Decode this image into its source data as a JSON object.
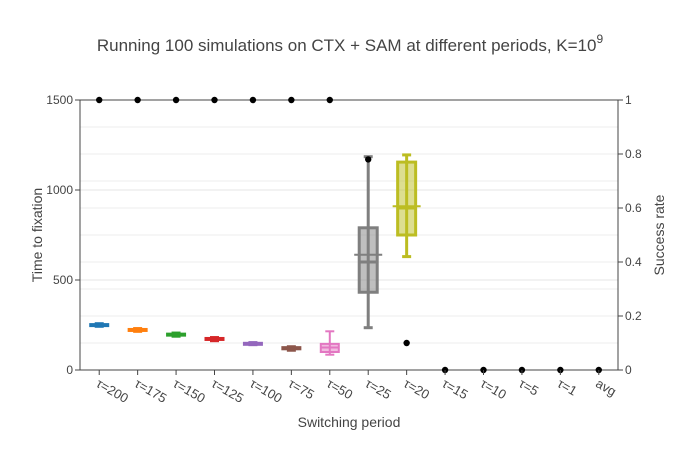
{
  "chart_data": {
    "type": "box",
    "title": "Running 100 simulations on CTX + SAM at different periods, K=10",
    "title_superscript": "9",
    "xlabel": "Switching period",
    "ylabel_left": "Time to fixation",
    "ylabel_right": "Success rate",
    "y_left_range": [
      0,
      1500
    ],
    "y_left_ticks": [
      0,
      500,
      1000,
      1500
    ],
    "y_left_tick_labels": [
      "0",
      "500",
      "1000",
      "1500"
    ],
    "y_right_range": [
      0,
      1
    ],
    "y_right_ticks": [
      0,
      0.2,
      0.4,
      0.6,
      0.8,
      1
    ],
    "y_right_tick_labels": [
      "0",
      "0.2",
      "0.4",
      "0.6",
      "0.8",
      "1"
    ],
    "grid": true,
    "categories": [
      "τ=200",
      "τ=175",
      "τ=150",
      "τ=125",
      "τ=100",
      "τ=75",
      "τ=50",
      "τ=25",
      "τ=20",
      "τ=15",
      "τ=10",
      "τ=5",
      "τ=1",
      "avg"
    ],
    "boxes": [
      {
        "category": "τ=200",
        "color": "#1f77b4",
        "min": 240,
        "q1": 245,
        "median": 250,
        "q3": 255,
        "max": 260
      },
      {
        "category": "τ=175",
        "color": "#ff7f0e",
        "min": 212,
        "q1": 218,
        "median": 223,
        "q3": 228,
        "max": 233
      },
      {
        "category": "τ=150",
        "color": "#2ca02c",
        "min": 185,
        "q1": 192,
        "median": 197,
        "q3": 202,
        "max": 208
      },
      {
        "category": "τ=125",
        "color": "#d62728",
        "min": 160,
        "q1": 168,
        "median": 173,
        "q3": 178,
        "max": 183
      },
      {
        "category": "τ=100",
        "color": "#9467bd",
        "min": 138,
        "q1": 143,
        "median": 147,
        "q3": 151,
        "max": 155
      },
      {
        "category": "τ=75",
        "color": "#8c564b",
        "min": 107,
        "q1": 115,
        "median": 121,
        "q3": 127,
        "max": 132
      },
      {
        "category": "τ=50",
        "color": "#e377c2",
        "min": 85,
        "q1": 100,
        "median": 125,
        "q3": 145,
        "max": 215
      },
      {
        "category": "τ=25",
        "color": "#7f7f7f",
        "min": 235,
        "q1": 432,
        "median": 600,
        "q3": 790,
        "max": 1185,
        "mean": 640
      },
      {
        "category": "τ=20",
        "color": "#bcbd22",
        "min": 630,
        "q1": 750,
        "median": 900,
        "q3": 1155,
        "max": 1195,
        "mean": 910
      }
    ],
    "success_rate": {
      "categories": [
        "τ=200",
        "τ=175",
        "τ=150",
        "τ=125",
        "τ=100",
        "τ=75",
        "τ=50",
        "τ=25",
        "τ=20",
        "τ=15",
        "τ=10",
        "τ=5",
        "τ=1",
        "avg"
      ],
      "values": [
        1,
        1,
        1,
        1,
        1,
        1,
        1,
        0.78,
        0.1,
        0,
        0,
        0,
        0,
        0
      ]
    }
  }
}
